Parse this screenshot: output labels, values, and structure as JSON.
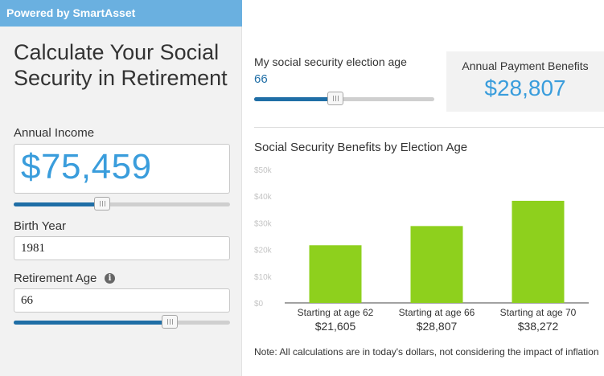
{
  "header": {
    "powered_by": "Powered by SmartAsset"
  },
  "calculator": {
    "title": "Calculate Your Social Security in Retirement",
    "income": {
      "label": "Annual Income",
      "value": "$75,459",
      "slider_fraction": 0.41
    },
    "birth_year": {
      "label": "Birth Year",
      "value": "1981"
    },
    "retirement_age": {
      "label": "Retirement Age",
      "value": "66",
      "slider_fraction": 0.72,
      "info_icon": "info-icon"
    }
  },
  "results": {
    "election_age": {
      "label": "My social security election age",
      "value": "66",
      "slider_fraction": 0.45
    },
    "annual_payment": {
      "label": "Annual Payment Benefits",
      "value": "$28,807"
    },
    "chart_title": "Social Security Benefits by Election Age",
    "note": "Note: All calculations are in today's dollars, not considering the impact of inflation"
  },
  "colors": {
    "accent_blue": "#3a9ddc",
    "slider_blue": "#1f6ea6",
    "bar_green": "#8ed01d",
    "header_blue": "#6ab0e0"
  },
  "chart_data": {
    "type": "bar",
    "categories": [
      "Starting at age 62",
      "Starting at age 66",
      "Starting at age 70"
    ],
    "values": [
      21605,
      28807,
      38272
    ],
    "value_labels": [
      "$21,605",
      "$28,807",
      "$38,272"
    ],
    "title": "Social Security Benefits by Election Age",
    "yticks": [
      0,
      10000,
      20000,
      30000,
      40000,
      50000
    ],
    "ytick_labels": [
      "$0",
      "$10k",
      "$20k",
      "$30k",
      "$40k",
      "$50k"
    ],
    "ylim": [
      0,
      50000
    ],
    "grid": false
  }
}
